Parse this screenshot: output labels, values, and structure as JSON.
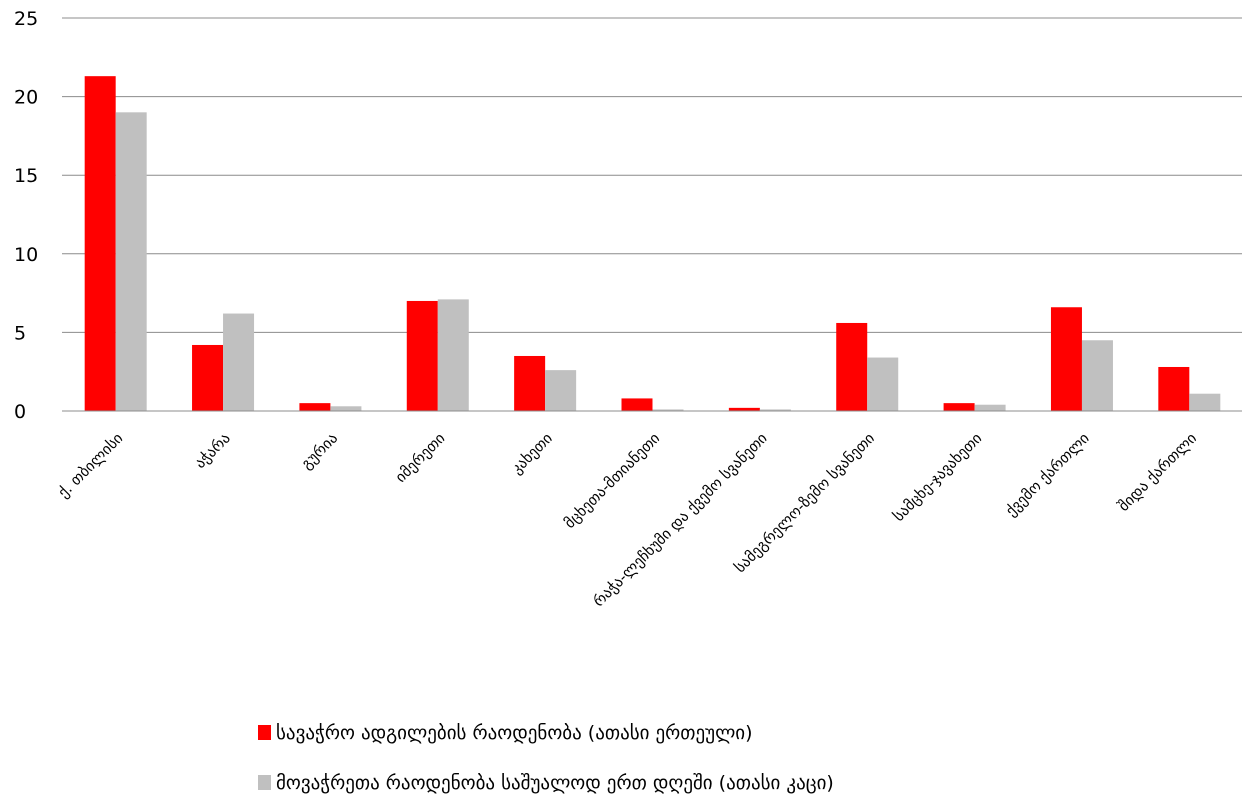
{
  "chart_data": {
    "type": "bar",
    "categories": [
      "ქ. თბილისი",
      "აჭარა",
      "გურია",
      "იმერეთი",
      "კახეთი",
      "მცხეთა-მთიანეთი",
      "რაჭა-ლეჩხუმი და ქვემო სვანეთი",
      "სამეგრელო-ზემო სვანეთი",
      "სამცხე-ჯავახეთი",
      "ქვემო ქართლი",
      "შიდა ქართლი"
    ],
    "series": [
      {
        "name": "სავაჭრო ადგილების რაოდენობა (ათასი ერთეული)",
        "color": "#ff0000",
        "values": [
          21.3,
          4.2,
          0.5,
          7.0,
          3.5,
          0.8,
          0.2,
          5.6,
          0.5,
          6.6,
          2.8
        ]
      },
      {
        "name": "მოვაჭრეთა რაოდენობა საშუალოდ ერთ დღეში (ათასი კაცი)",
        "color": "#c0c0c0",
        "values": [
          19.0,
          6.2,
          0.3,
          7.1,
          2.6,
          0.1,
          0.1,
          3.4,
          0.4,
          4.5,
          1.1
        ]
      }
    ],
    "y_ticks": [
      "0",
      "5",
      "10",
      "15",
      "20",
      "25"
    ],
    "ylim": [
      0,
      25
    ],
    "grid": true,
    "legend_position": "bottom",
    "title": "",
    "xlabel": "",
    "ylabel": ""
  }
}
